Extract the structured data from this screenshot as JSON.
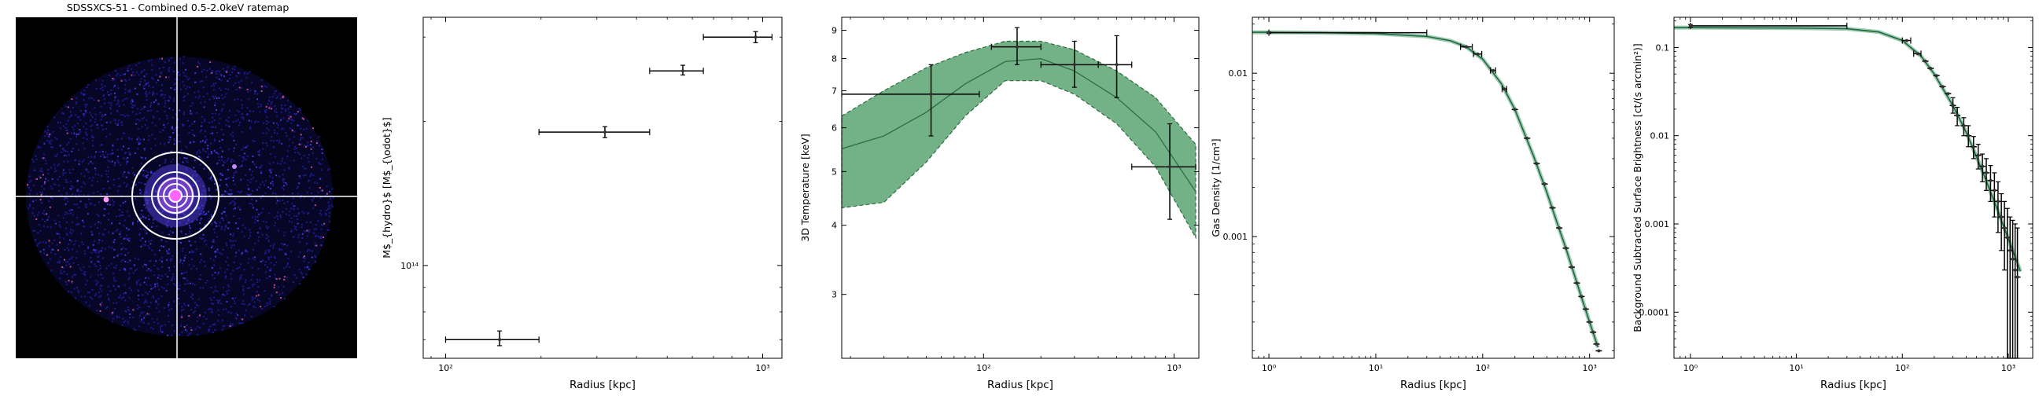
{
  "chart_data": [
    {
      "type": "image",
      "title": "SDSSXCS-51 - Combined 0.5-2.0keV ratemap",
      "colors": {
        "background": "#000000",
        "source": "#3333cc",
        "circles": "#ffffff",
        "crosshair": "#ffffff"
      }
    },
    {
      "type": "scatter",
      "xlabel": "Radius [kpc]",
      "ylabel": "M$_{hydro}$ [M$_{\\odot}$]",
      "xscale": "log",
      "yscale": "log",
      "xlim": [
        85,
        1150
      ],
      "ylim": [
        64000000000000.0,
        330000000000000.0
      ],
      "xticks": [
        {
          "v": 100,
          "label": "10²"
        },
        {
          "v": 1000,
          "label": "10³"
        }
      ],
      "yticks": [
        {
          "v": 100000000000000.0,
          "label": "10¹⁴"
        }
      ],
      "series": [
        {
          "points": [
            {
              "x": 148,
              "y": 70000000000000.0,
              "xerr": [
                100,
                197
              ],
              "yerr": [
                68000000000000.0,
                73000000000000.0
              ]
            },
            {
              "x": 318,
              "y": 190000000000000.0,
              "xerr": [
                197,
                440
              ],
              "yerr": [
                185000000000000.0,
                195000000000000.0
              ]
            },
            {
              "x": 560,
              "y": 255000000000000.0,
              "xerr": [
                440,
                650
              ],
              "yerr": [
                250000000000000.0,
                262000000000000.0
              ]
            },
            {
              "x": 950,
              "y": 300000000000000.0,
              "xerr": [
                650,
                1070
              ],
              "yerr": [
                292000000000000.0,
                308000000000000.0
              ]
            }
          ]
        }
      ]
    },
    {
      "type": "scatter",
      "xlabel": "Radius [kpc]",
      "ylabel": "3D Temperature [keV]",
      "xscale": "log",
      "yscale": "log",
      "xlim": [
        18,
        1350
      ],
      "ylim": [
        2.3,
        9.5
      ],
      "xticks": [
        {
          "v": 100,
          "label": "10²"
        },
        {
          "v": 1000,
          "label": "10³"
        }
      ],
      "yticks": [
        {
          "v": 3,
          "label": "3"
        },
        {
          "v": 4,
          "label": "4"
        },
        {
          "v": 5,
          "label": "5"
        },
        {
          "v": 6,
          "label": "6"
        },
        {
          "v": 7,
          "label": "7"
        },
        {
          "v": 8,
          "label": "8"
        },
        {
          "v": 9,
          "label": "9"
        }
      ],
      "band": {
        "x": [
          18,
          30,
          50,
          80,
          130,
          200,
          300,
          500,
          800,
          1300
        ],
        "mid": [
          5.5,
          5.8,
          6.4,
          7.2,
          7.9,
          8.0,
          7.6,
          6.8,
          5.9,
          4.6
        ],
        "lo": [
          4.3,
          4.4,
          5.2,
          6.3,
          7.3,
          7.3,
          6.9,
          6.1,
          5.1,
          3.8
        ],
        "hi": [
          6.3,
          7.0,
          7.7,
          8.2,
          8.6,
          8.6,
          8.3,
          7.6,
          6.8,
          5.6
        ]
      },
      "series": [
        {
          "points": [
            {
              "x": 53,
              "y": 6.9,
              "xerr": [
                18,
                95
              ],
              "yerr": [
                5.8,
                7.8
              ]
            },
            {
              "x": 150,
              "y": 8.4,
              "xerr": [
                110,
                200
              ],
              "yerr": [
                7.8,
                9.1
              ]
            },
            {
              "x": 300,
              "y": 7.8,
              "xerr": [
                200,
                400
              ],
              "yerr": [
                7.1,
                8.6
              ]
            },
            {
              "x": 500,
              "y": 7.8,
              "xerr": [
                400,
                600
              ],
              "yerr": [
                6.8,
                8.8
              ]
            },
            {
              "x": 950,
              "y": 5.1,
              "xerr": [
                600,
                1300
              ],
              "yerr": [
                4.1,
                6.1
              ]
            }
          ]
        }
      ]
    },
    {
      "type": "line",
      "xlabel": "Radius [kpc]",
      "ylabel": "Gas Density [1/cm³]",
      "xscale": "log",
      "yscale": "log",
      "xlim": [
        0.7,
        1700
      ],
      "ylim": [
        0.00018,
        0.022
      ],
      "xticks": [
        {
          "v": 1,
          "label": "10⁰"
        },
        {
          "v": 10,
          "label": "10¹"
        },
        {
          "v": 100,
          "label": "10²"
        },
        {
          "v": 1000,
          "label": "10³"
        }
      ],
      "yticks": [
        {
          "v": 0.01,
          "label": "0.01"
        },
        {
          "v": 0.001,
          "label": "0.001"
        }
      ],
      "model": {
        "x": [
          0.7,
          1,
          3,
          10,
          30,
          50,
          70,
          100,
          150,
          200,
          300,
          400,
          500,
          600,
          700,
          800,
          900,
          1000,
          1200
        ],
        "y": [
          0.0178,
          0.0178,
          0.0177,
          0.0175,
          0.0168,
          0.0158,
          0.0145,
          0.0122,
          0.0086,
          0.006,
          0.0031,
          0.00185,
          0.0012,
          0.00085,
          0.00062,
          0.00047,
          0.00037,
          0.0003,
          0.00021
        ]
      },
      "series": [
        {
          "points": [
            {
              "x": 1,
              "y": 0.0177,
              "xerr": [
                1,
                30
              ],
              "yerr": [
                0.0175,
                0.0179
              ]
            },
            {
              "x": 70,
              "y": 0.0145,
              "xerr": [
                62,
                80
              ]
            },
            {
              "x": 90,
              "y": 0.0131,
              "xerr": [
                82,
                98
              ]
            },
            {
              "x": 125,
              "y": 0.0104,
              "xerr": [
                118,
                132
              ]
            },
            {
              "x": 160,
              "y": 0.008,
              "xerr": [
                152,
                168
              ]
            },
            {
              "x": 200,
              "y": 0.006
            },
            {
              "x": 260,
              "y": 0.004
            },
            {
              "x": 320,
              "y": 0.0028
            },
            {
              "x": 380,
              "y": 0.0021
            },
            {
              "x": 450,
              "y": 0.0015
            },
            {
              "x": 520,
              "y": 0.00113
            },
            {
              "x": 600,
              "y": 0.00085
            },
            {
              "x": 680,
              "y": 0.00065
            },
            {
              "x": 760,
              "y": 0.00052
            },
            {
              "x": 840,
              "y": 0.00043
            },
            {
              "x": 920,
              "y": 0.00036
            },
            {
              "x": 1000,
              "y": 0.0003
            },
            {
              "x": 1080,
              "y": 0.00026
            },
            {
              "x": 1160,
              "y": 0.00022
            },
            {
              "x": 1220,
              "y": 0.0002
            }
          ]
        }
      ]
    },
    {
      "type": "scatter",
      "xlabel": "Radius [kpc]",
      "ylabel": "Background Subtracted Surface Brightness [ct/(s arcmin²)]",
      "xscale": "log",
      "yscale": "log",
      "xlim": [
        0.7,
        1700
      ],
      "ylim": [
        3e-05,
        0.22
      ],
      "xticks": [
        {
          "v": 1,
          "label": "10⁰"
        },
        {
          "v": 10,
          "label": "10¹"
        },
        {
          "v": 100,
          "label": "10²"
        },
        {
          "v": 1000,
          "label": "10³"
        }
      ],
      "yticks": [
        {
          "v": 0.1,
          "label": "0.1"
        },
        {
          "v": 0.01,
          "label": "0.01"
        },
        {
          "v": 0.001,
          "label": "0.001"
        },
        {
          "v": 0.0001,
          "label": "0.0001"
        }
      ],
      "model": {
        "x": [
          0.7,
          1,
          3,
          10,
          30,
          60,
          100,
          150,
          200,
          300,
          400,
          500,
          600,
          700,
          800,
          900,
          1000,
          1100,
          1200,
          1300
        ],
        "y": [
          0.168,
          0.168,
          0.167,
          0.166,
          0.163,
          0.15,
          0.12,
          0.08,
          0.05,
          0.022,
          0.011,
          0.0058,
          0.0034,
          0.0021,
          0.0014,
          0.00095,
          0.00068,
          0.0005,
          0.00038,
          0.00029
        ]
      },
      "series": [
        {
          "points": [
            {
              "x": 1,
              "y": 0.176,
              "xerr": [
                1,
                30
              ],
              "yerr": [
                0.17,
                0.182
              ]
            },
            {
              "x": 110,
              "y": 0.12,
              "xerr": [
                100,
                120
              ]
            },
            {
              "x": 140,
              "y": 0.085,
              "xerr": [
                128,
                150
              ]
            },
            {
              "x": 165,
              "y": 0.07
            },
            {
              "x": 185,
              "y": 0.058
            },
            {
              "x": 210,
              "y": 0.048
            },
            {
              "x": 240,
              "y": 0.036
            },
            {
              "x": 270,
              "y": 0.03
            },
            {
              "x": 300,
              "y": 0.022,
              "yerr": [
                0.018,
                0.027
              ]
            },
            {
              "x": 330,
              "y": 0.017,
              "yerr": [
                0.013,
                0.021
              ]
            },
            {
              "x": 380,
              "y": 0.013,
              "yerr": [
                0.01,
                0.016
              ]
            },
            {
              "x": 420,
              "y": 0.01,
              "yerr": [
                0.0075,
                0.013
              ]
            },
            {
              "x": 470,
              "y": 0.0075,
              "yerr": [
                0.0055,
                0.0098
              ]
            },
            {
              "x": 520,
              "y": 0.006,
              "yerr": [
                0.0042,
                0.008
              ]
            },
            {
              "x": 570,
              "y": 0.0045,
              "yerr": [
                0.003,
                0.0062
              ]
            },
            {
              "x": 620,
              "y": 0.0038,
              "yerr": [
                0.0024,
                0.0055
              ]
            },
            {
              "x": 680,
              "y": 0.0031,
              "yerr": [
                0.0018,
                0.0046
              ]
            },
            {
              "x": 740,
              "y": 0.0024,
              "yerr": [
                0.0012,
                0.0038
              ]
            },
            {
              "x": 800,
              "y": 0.0018,
              "yerr": [
                0.0008,
                0.003
              ]
            },
            {
              "x": 860,
              "y": 0.0012,
              "yerr": [
                0.0005,
                0.0022
              ]
            },
            {
              "x": 920,
              "y": 0.0009,
              "yerr": [
                0.0003,
                0.0018
              ]
            },
            {
              "x": 980,
              "y": 0.0007,
              "yerr": [
                3e-05,
                0.0015
              ]
            },
            {
              "x": 1040,
              "y": 0.0005,
              "yerr": [
                3e-05,
                0.0012
              ]
            },
            {
              "x": 1100,
              "y": 0.0004,
              "yerr": [
                3e-05,
                0.0011
              ]
            },
            {
              "x": 1160,
              "y": 0.0003,
              "yerr": [
                3e-05,
                0.001
              ]
            },
            {
              "x": 1220,
              "y": 0.00025,
              "yerr": [
                3e-05,
                0.0009
              ]
            }
          ]
        }
      ]
    }
  ]
}
